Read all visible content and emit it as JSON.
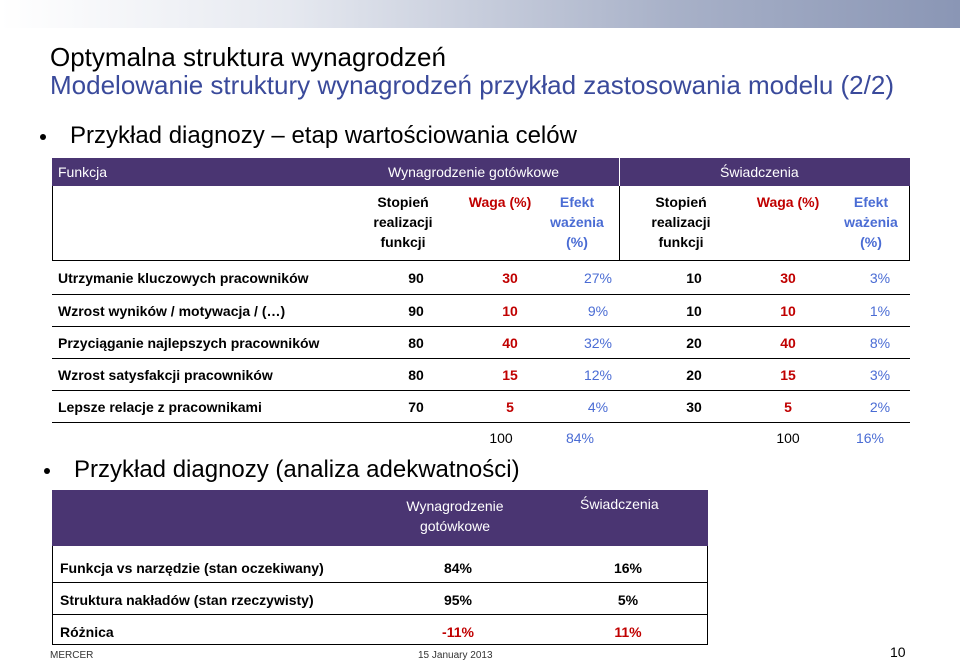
{
  "title": "Optymalna struktura wynagrodzeń",
  "subtitle": "Modelowanie struktury wynagrodzeń przykład zastosowania modelu (2/2)",
  "bullet1": "Przykład diagnozy – etap wartościowania celów",
  "bullet2": "Przykład diagnozy (analiza adekwatności)",
  "table1": {
    "header": {
      "funkcja": "Funkcja",
      "cash": "Wynagrodzenie gotówkowe",
      "benefits": "Świadczenia"
    },
    "sub": {
      "stopien": "Stopień realizacji funkcji",
      "waga": "Waga (%)",
      "efekt": "Efekt ważenia (%)",
      "stopien2": "Stopień realizacji funkcji",
      "waga2": "Waga (%)",
      "efekt2": "Efekt ważenia (%)"
    },
    "rows": [
      {
        "label": "Utrzymanie kluczowych pracowników",
        "c1": "90",
        "c2": "30",
        "c3": "27%",
        "c4": "10",
        "c5": "30",
        "c6": "3%"
      },
      {
        "label": "Wzrost wyników / motywacja  / (…)",
        "c1": "90",
        "c2": "10",
        "c3": "9%",
        "c4": "10",
        "c5": "10",
        "c6": "1%"
      },
      {
        "label": "Przyciąganie najlepszych pracowników",
        "c1": "80",
        "c2": "40",
        "c3": "32%",
        "c4": "20",
        "c5": "40",
        "c6": "8%"
      },
      {
        "label": "Wzrost satysfakcji pracowników",
        "c1": "80",
        "c2": "15",
        "c3": "12%",
        "c4": "20",
        "c5": "15",
        "c6": "3%"
      },
      {
        "label": "Lepsze relacje z pracownikami",
        "c1": "70",
        "c2": "5",
        "c3": "4%",
        "c4": "30",
        "c5": "5",
        "c6": "2%"
      }
    ],
    "totals": {
      "waga": "100",
      "efekt": "84%",
      "waga2": "100",
      "efekt2": "16%"
    }
  },
  "table2": {
    "header": {
      "cash": "Wynagrodzenie gotówkowe",
      "benefits": "Świadczenia"
    },
    "rows": [
      {
        "label": "Funkcja vs narzędzie (stan oczekiwany)",
        "cash": "84%",
        "benefits": "16%"
      },
      {
        "label": "Struktura nakładów (stan rzeczywisty)",
        "cash": "95%",
        "benefits": "5%"
      },
      {
        "label": "Różnica",
        "cash": "-11%",
        "benefits": "11%"
      }
    ]
  },
  "footer": {
    "brand": "MERCER",
    "date": "15 January 2013",
    "page": "10"
  },
  "colors": {
    "header_bg": "#4a3572",
    "title2": "#3a4a9b",
    "red": "#c00000",
    "blue": "#4a6cd4"
  }
}
